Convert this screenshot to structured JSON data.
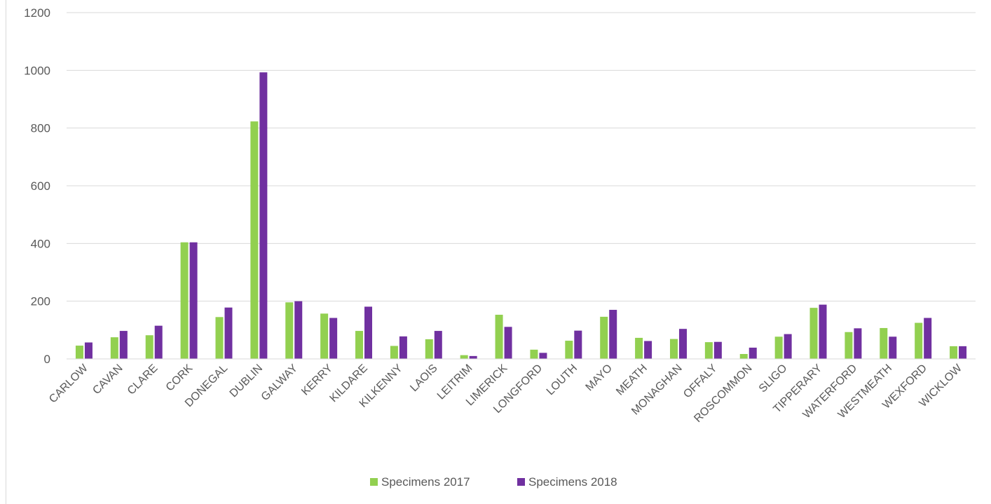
{
  "chart_data": {
    "type": "bar",
    "title": "",
    "xlabel": "",
    "ylabel": "",
    "ylim": [
      0,
      1200
    ],
    "yticks": [
      0,
      200,
      400,
      600,
      800,
      1000,
      1200
    ],
    "grid": "horizontal",
    "legend_position": "bottom",
    "categories": [
      "CARLOW",
      "CAVAN",
      "CLARE",
      "CORK",
      "DONEGAL",
      "DUBLIN",
      "GALWAY",
      "KERRY",
      "KILDARE",
      "KILKENNY",
      "LAOIS",
      "LEITRIM",
      "LIMERICK",
      "LONGFORD",
      "LOUTH",
      "MAYO",
      "MEATH",
      "MONAGHAN",
      "OFFALY",
      "ROSCOMMON",
      "SLIGO",
      "TIPPERARY",
      "WATERFORD",
      "WESTMEATH",
      "WEXFORD",
      "WICKLOW"
    ],
    "series": [
      {
        "name": "Specimens 2017",
        "color": "#92d050",
        "values": [
          46,
          75,
          82,
          404,
          145,
          823,
          196,
          157,
          97,
          45,
          68,
          13,
          153,
          32,
          63,
          146,
          73,
          69,
          58,
          17,
          77,
          177,
          93,
          107,
          125,
          44
        ]
      },
      {
        "name": "Specimens 2018",
        "color": "#7030a0",
        "values": [
          57,
          97,
          115,
          404,
          178,
          993,
          200,
          142,
          181,
          78,
          97,
          10,
          111,
          21,
          98,
          170,
          62,
          104,
          59,
          39,
          86,
          188,
          106,
          77,
          142,
          44
        ]
      }
    ]
  }
}
